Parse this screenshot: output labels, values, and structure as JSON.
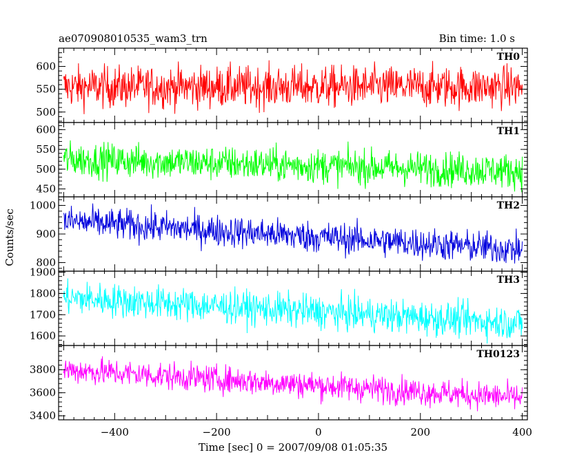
{
  "chart_data": {
    "type": "line",
    "title": "ae070908010535_wam3_trn",
    "bin_time_label": "Bin time: 1.0 s",
    "xlabel": "Time [sec] 0 = 2007/09/08 01:05:35",
    "ylabel": "Counts/sec",
    "xlim": [
      -510,
      410
    ],
    "x_ticks": [
      -400,
      -200,
      0,
      200,
      400
    ],
    "x_tick_labels": [
      "−400",
      "−200",
      "0",
      "200",
      "400"
    ],
    "x_range": [
      -500,
      400
    ],
    "grid": false,
    "panels": [
      {
        "name": "TH0",
        "color": "#ff0000",
        "ylim": [
          477,
          640
        ],
        "y_ticks": [
          500,
          550,
          600
        ],
        "y_tick_labels": [
          "500",
          "550",
          "600"
        ],
        "mean_start": 555,
        "mean_end": 555,
        "noise": 23
      },
      {
        "name": "TH1",
        "color": "#00ff00",
        "ylim": [
          430,
          618
        ],
        "y_ticks": [
          450,
          500,
          550,
          600
        ],
        "y_tick_labels": [
          "450",
          "500",
          "550",
          "600"
        ],
        "mean_start": 525,
        "mean_end": 495,
        "noise": 22
      },
      {
        "name": "TH2",
        "color": "#0000dd",
        "ylim": [
          770,
          1030
        ],
        "y_ticks": [
          800,
          900,
          1000
        ],
        "y_tick_labels": [
          "800",
          "900",
          "1000"
        ],
        "mean_start": 945,
        "mean_end": 845,
        "noise": 28
      },
      {
        "name": "TH3",
        "color": "#00ffff",
        "ylim": [
          1555,
          1905
        ],
        "y_ticks": [
          1600,
          1700,
          1800,
          1900
        ],
        "y_tick_labels": [
          "1600",
          "1700",
          "1800",
          "1900"
        ],
        "mean_start": 1780,
        "mean_end": 1660,
        "noise": 40
      },
      {
        "name": "TH0123",
        "color": "#ff00ff",
        "ylim": [
          3365,
          4010
        ],
        "y_ticks": [
          3400,
          3600,
          3800
        ],
        "y_tick_labels": [
          "3400",
          "3600",
          "3800"
        ],
        "mean_start": 3800,
        "mean_end": 3555,
        "noise": 60
      }
    ]
  }
}
